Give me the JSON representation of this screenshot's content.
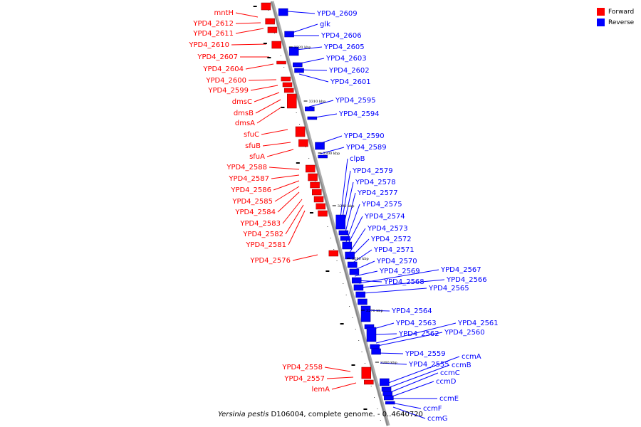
{
  "caption": {
    "organism": "Yersinia pestis",
    "rest": " D106004, complete genome. - 0..4640720"
  },
  "legend": {
    "items": [
      {
        "label": "Forward",
        "color": "#ff0000"
      },
      {
        "label": "Reverse",
        "color": "#0000ff"
      }
    ]
  },
  "colors": {
    "forward": "#ff0000",
    "reverse": "#0000ff",
    "backbone": "#888888"
  },
  "scale_ticks": [
    "3320 kbp",
    "3310 kbp",
    "3300 kbp",
    "3290 kbp",
    "3280 kbp",
    "3270 kbp",
    "3260 kbp"
  ],
  "forward_labels": [
    "mntH",
    "YPD4_2612",
    "YPD4_2611",
    "YPD4_2610",
    "YPD4_2607",
    "YPD4_2604",
    "YPD4_2600",
    "YPD4_2599",
    "dmsC",
    "dmsB",
    "dmsA",
    "sfuC",
    "sfuB",
    "sfuA",
    "YPD4_2588",
    "YPD4_2587",
    "YPD4_2586",
    "YPD4_2585",
    "YPD4_2584",
    "YPD4_2583",
    "YPD4_2582",
    "YPD4_2581",
    "YPD4_2576",
    "YPD4_2558",
    "YPD4_2557",
    "lemA"
  ],
  "reverse_labels": [
    "YPD4_2609",
    "glk",
    "YPD4_2606",
    "YPD4_2605",
    "YPD4_2603",
    "YPD4_2602",
    "YPD4_2601",
    "YPD4_2595",
    "YPD4_2594",
    "YPD4_2590",
    "YPD4_2589",
    "clpB",
    "YPD4_2579",
    "YPD4_2578",
    "YPD4_2577",
    "YPD4_2575",
    "YPD4_2574",
    "YPD4_2573",
    "YPD4_2572",
    "YPD4_2571",
    "YPD4_2570",
    "YPD4_2569",
    "YPD4_2568",
    "YPD4_2567",
    "YPD4_2566",
    "YPD4_2565",
    "YPD4_2564",
    "YPD4_2563",
    "YPD4_2562",
    "YPD4_2561",
    "YPD4_2560",
    "YPD4_2559",
    "YPD4_2555",
    "ccmA",
    "ccmB",
    "ccmC",
    "ccmD",
    "ccmE",
    "ccmF",
    "ccmG"
  ]
}
